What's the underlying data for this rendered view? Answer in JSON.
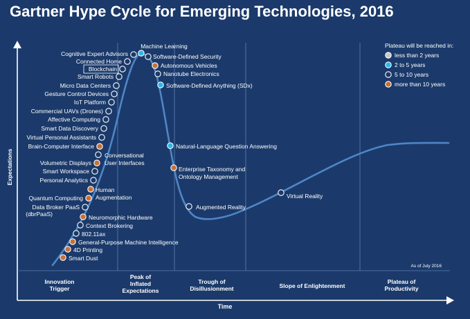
{
  "page": {
    "title": "Gartner Hype Cycle for Emerging Technologies, 2016",
    "as_of": "As of July 2016"
  },
  "colors": {
    "background": "#1b3a6b",
    "curve": "#4f86c6",
    "axis": "#ffffff",
    "divider": "#5f81b3"
  },
  "chart_data": {
    "type": "scatter",
    "title": "Gartner Hype Cycle for Emerging Technologies, 2016",
    "xlabel": "Time",
    "ylabel": "Expectations",
    "grid": false,
    "legend_position": "top-right",
    "legend": {
      "title": "Plateau will be reached in:",
      "entries": [
        {
          "key": "lt2",
          "label": "less than 2 years",
          "color": "#c9c9c9"
        },
        {
          "key": "2to5",
          "label": "2 to 5 years",
          "color": "#2db6e8"
        },
        {
          "key": "5to10",
          "label": "5 to 10 years",
          "color": "#1b3a6b"
        },
        {
          "key": "gt10",
          "label": "more than 10 years",
          "color": "#c7703a"
        }
      ]
    },
    "phases": [
      "Innovation Trigger",
      "Peak of Inflated Expectations",
      "Trough of Disillusionment",
      "Slope of Enlightenment",
      "Plateau of Productivity"
    ],
    "technologies": [
      {
        "name": "Smart Dust",
        "plateau": "gt10"
      },
      {
        "name": "4D Printing",
        "plateau": "gt10"
      },
      {
        "name": "General-Purpose Machine Intelligence",
        "plateau": "gt10"
      },
      {
        "name": "802.11ax",
        "plateau": "5to10"
      },
      {
        "name": "Context Brokering",
        "plateau": "5to10"
      },
      {
        "name": "Neuromorphic Hardware",
        "plateau": "gt10"
      },
      {
        "name": "Data Broker PaaS (dbrPaaS)",
        "plateau": "5to10"
      },
      {
        "name": "Quantum Computing",
        "plateau": "gt10"
      },
      {
        "name": "Human Augmentation",
        "plateau": "gt10"
      },
      {
        "name": "Personal Analytics",
        "plateau": "5to10"
      },
      {
        "name": "Smart Workspace",
        "plateau": "5to10"
      },
      {
        "name": "Volumetric Displays",
        "plateau": "gt10"
      },
      {
        "name": "Conversational User Interfaces",
        "plateau": "5to10"
      },
      {
        "name": "Brain-Computer Interface",
        "plateau": "gt10"
      },
      {
        "name": "Virtual Personal Assistants",
        "plateau": "5to10"
      },
      {
        "name": "Smart Data Discovery",
        "plateau": "5to10"
      },
      {
        "name": "Affective Computing",
        "plateau": "5to10"
      },
      {
        "name": "Commercial UAVs (Drones)",
        "plateau": "5to10"
      },
      {
        "name": "IoT Platform",
        "plateau": "5to10"
      },
      {
        "name": "Gesture Control Devices",
        "plateau": "5to10"
      },
      {
        "name": "Micro Data Centers",
        "plateau": "5to10"
      },
      {
        "name": "Smart Robots",
        "plateau": "5to10"
      },
      {
        "name": "Blockchain",
        "plateau": "5to10"
      },
      {
        "name": "Connected Home",
        "plateau": "5to10"
      },
      {
        "name": "Cognitive Expert Advisors",
        "plateau": "5to10"
      },
      {
        "name": "Machine Learning",
        "plateau": "2to5"
      },
      {
        "name": "Software-Defined Security",
        "plateau": "5to10"
      },
      {
        "name": "Autonomous Vehicles",
        "plateau": "gt10"
      },
      {
        "name": "Nanotube Electronics",
        "plateau": "5to10"
      },
      {
        "name": "Software-Defined Anything (SDx)",
        "plateau": "2to5"
      },
      {
        "name": "Natural-Language Question Answering",
        "plateau": "2to5"
      },
      {
        "name": "Enterprise Taxonomy and Ontology Management",
        "plateau": "gt10"
      },
      {
        "name": "Augmented Reality",
        "plateau": "5to10"
      },
      {
        "name": "Virtual Reality",
        "plateau": "5to10"
      }
    ]
  }
}
